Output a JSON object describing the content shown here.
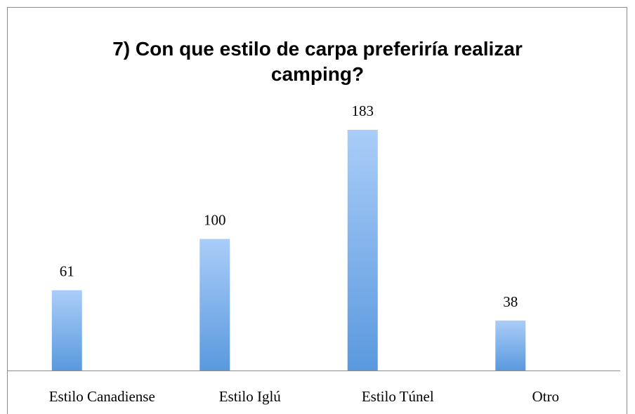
{
  "chart_data": {
    "type": "bar",
    "title": "7) Con que estilo de carpa preferiría realizar camping?",
    "categories": [
      "Estilo Canadiense",
      "Estilo Iglú",
      "Estilo Túnel",
      "Otro"
    ],
    "values": [
      61,
      100,
      183,
      38
    ],
    "color": "#6fa6e6"
  }
}
